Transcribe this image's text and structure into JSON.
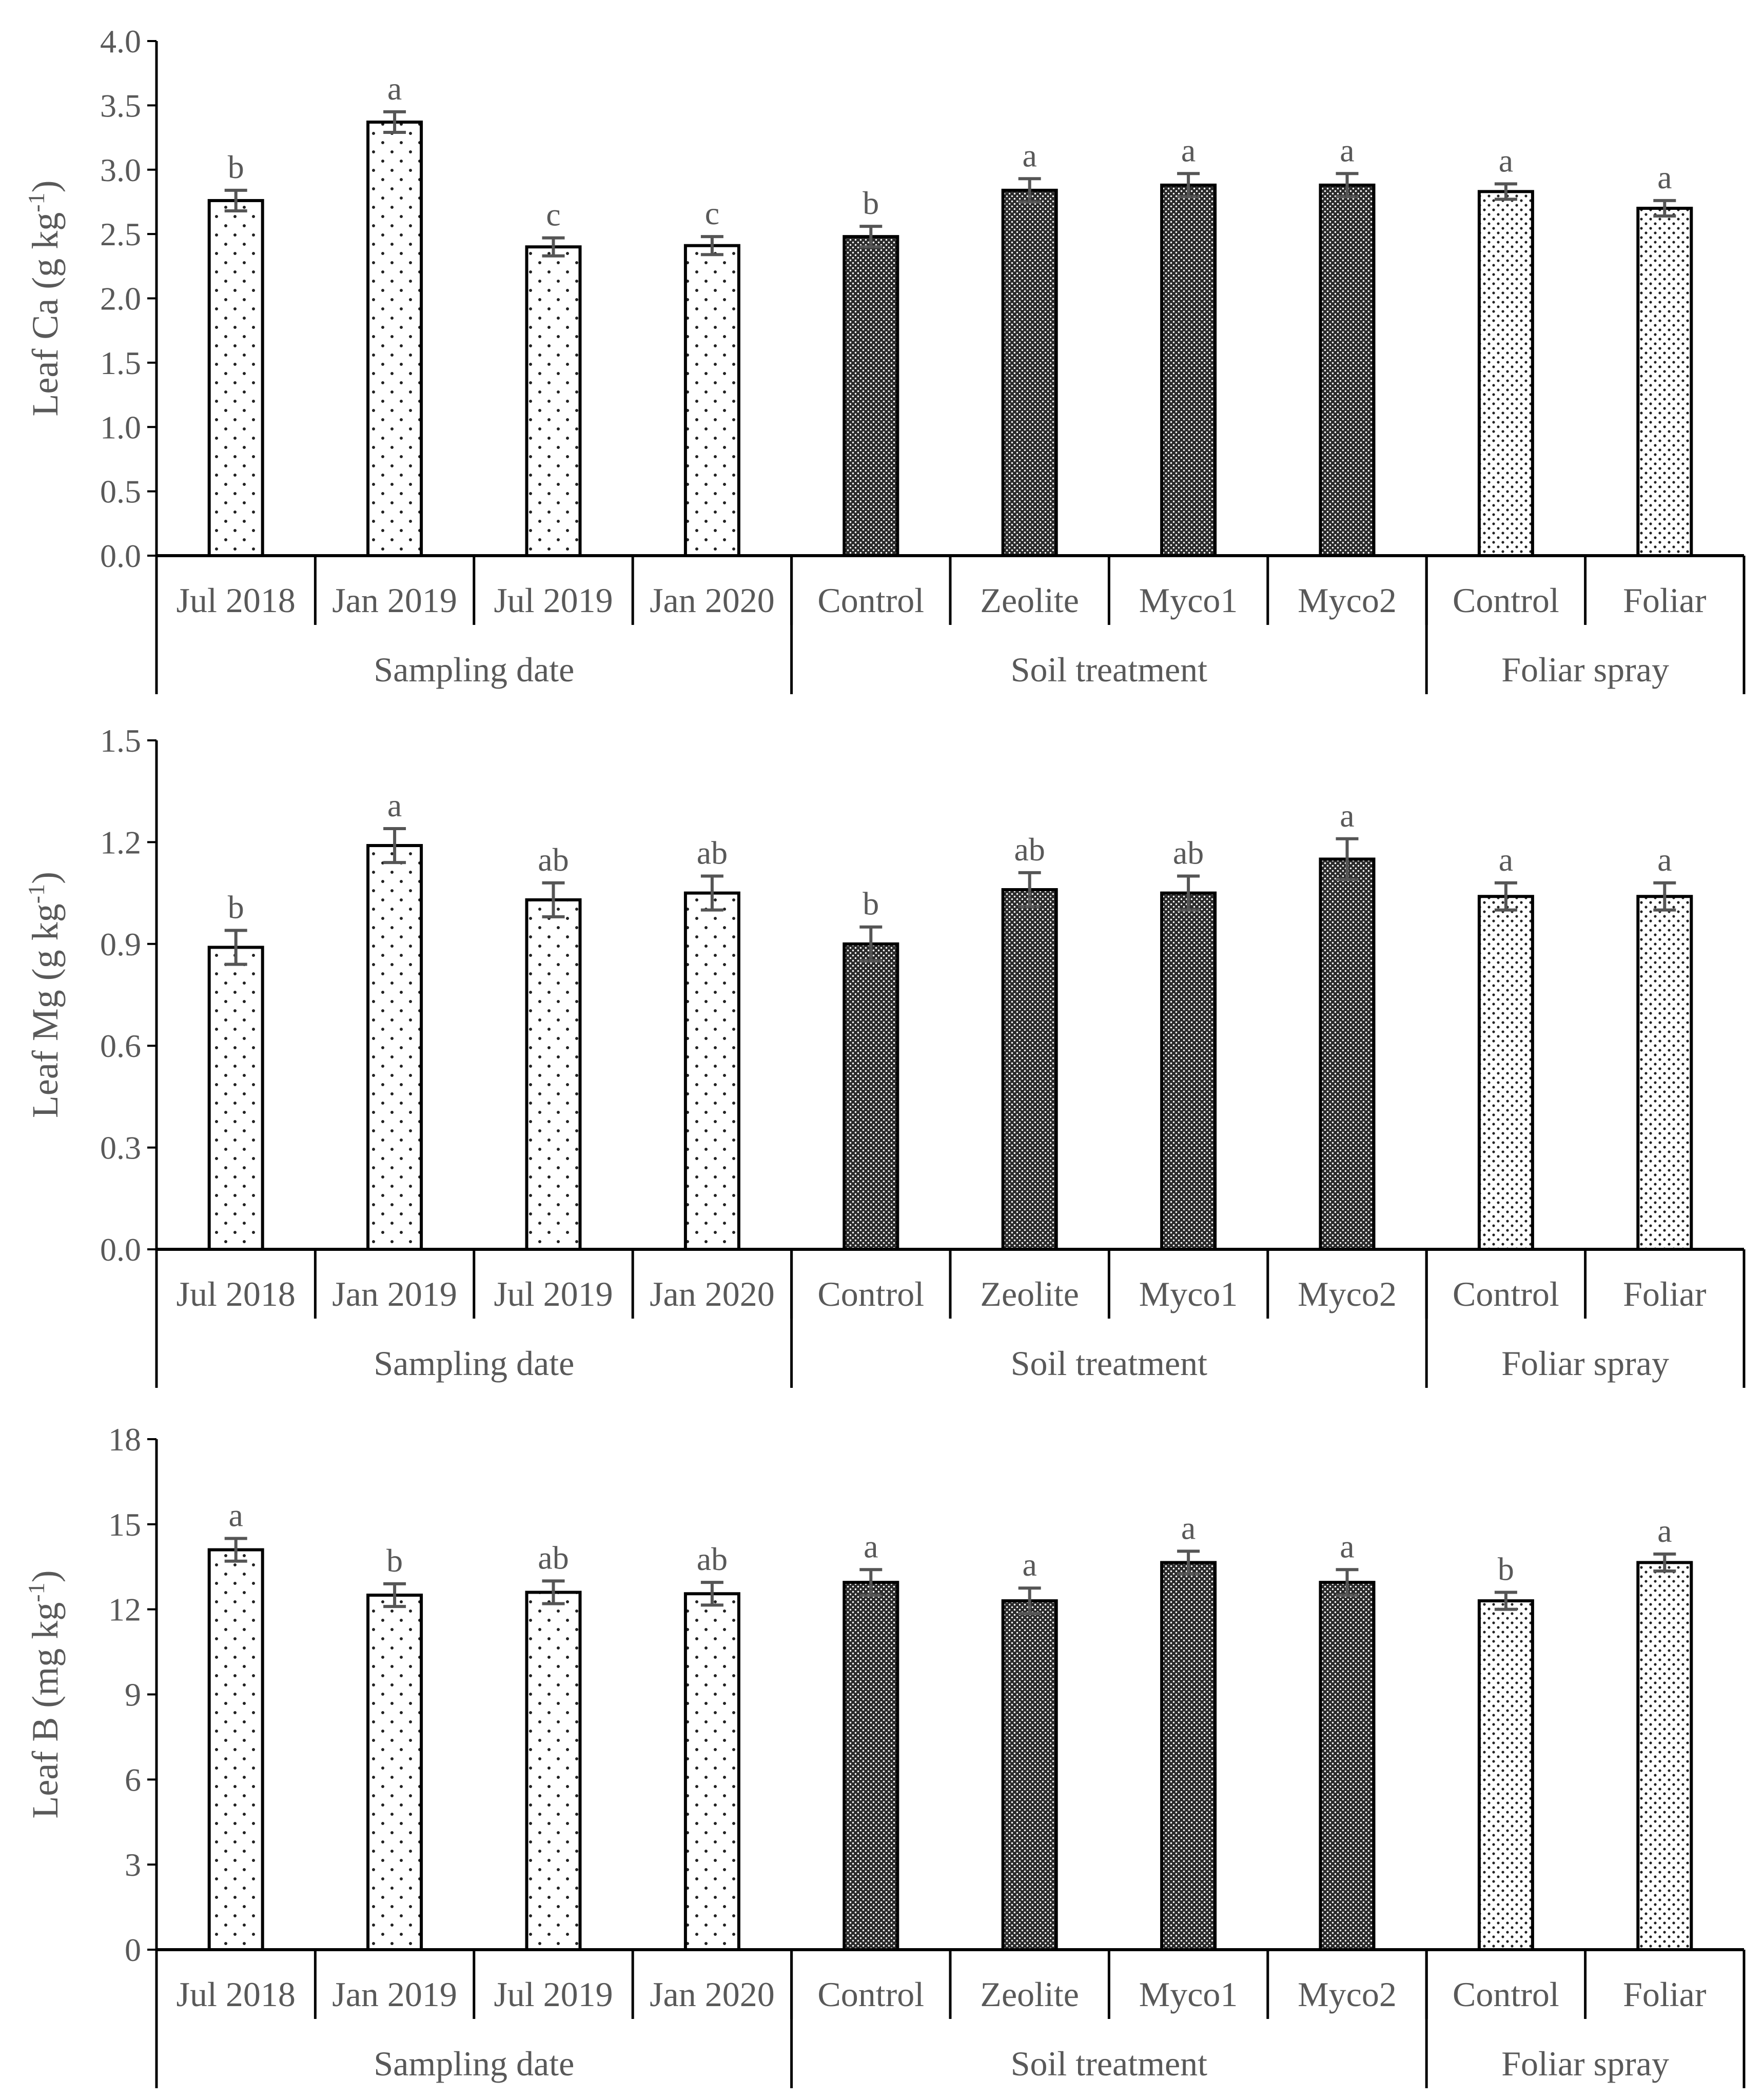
{
  "chart_data": [
    {
      "type": "bar",
      "panel": "top",
      "ylabel": "Leaf Ca (g kg-1)",
      "ylabel_main": "Leaf Ca (g kg",
      "ylabel_sup": "-1",
      "ylabel_end": ")",
      "ylim": [
        0,
        4
      ],
      "yticks": [
        "0.0",
        "0.5",
        "1.0",
        "1.5",
        "2.0",
        "2.5",
        "3.0",
        "3.5",
        "4.0"
      ],
      "ytick_values": [
        0,
        0.5,
        1.0,
        1.5,
        2.0,
        2.5,
        3.0,
        3.5,
        4.0
      ],
      "categories": [
        "Jul 2018",
        "Jan 2019",
        "Jul 2019",
        "Jan 2020",
        "Control",
        "Zeolite",
        "Myco1",
        "Myco2",
        "Control",
        "Foliar"
      ],
      "values": [
        2.76,
        3.37,
        2.4,
        2.41,
        2.48,
        2.84,
        2.88,
        2.88,
        2.83,
        2.7
      ],
      "errors": [
        0.08,
        0.08,
        0.07,
        0.07,
        0.08,
        0.09,
        0.09,
        0.09,
        0.06,
        0.06
      ],
      "letters": [
        "b",
        "a",
        "c",
        "c",
        "b",
        "a",
        "a",
        "a",
        "a",
        "a"
      ],
      "patterns": [
        "sparse",
        "sparse",
        "sparse",
        "sparse",
        "dense",
        "dense",
        "dense",
        "dense",
        "fine",
        "fine"
      ],
      "groups": [
        {
          "label": "Sampling date",
          "start": 0,
          "end": 3
        },
        {
          "label": "Soil treatment",
          "start": 4,
          "end": 7
        },
        {
          "label": "Foliar spray",
          "start": 8,
          "end": 9
        }
      ]
    },
    {
      "type": "bar",
      "panel": "middle",
      "ylabel": "Leaf Mg (g kg-1)",
      "ylabel_main": "Leaf Mg (g kg",
      "ylabel_sup": "-1",
      "ylabel_end": ")",
      "ylim": [
        0,
        1.5
      ],
      "yticks": [
        "0.0",
        "0.3",
        "0.6",
        "0.9",
        "1.2",
        "1.5"
      ],
      "ytick_values": [
        0,
        0.3,
        0.6,
        0.9,
        1.2,
        1.5
      ],
      "categories": [
        "Jul 2018",
        "Jan 2019",
        "Jul 2019",
        "Jan 2020",
        "Control",
        "Zeolite",
        "Myco1",
        "Myco2",
        "Control",
        "Foliar"
      ],
      "values": [
        0.89,
        1.19,
        1.03,
        1.05,
        0.9,
        1.06,
        1.05,
        1.15,
        1.04,
        1.04
      ],
      "errors": [
        0.05,
        0.05,
        0.05,
        0.05,
        0.05,
        0.05,
        0.05,
        0.06,
        0.04,
        0.04
      ],
      "letters": [
        "b",
        "a",
        "ab",
        "ab",
        "b",
        "ab",
        "ab",
        "a",
        "a",
        "a"
      ],
      "patterns": [
        "sparse",
        "sparse",
        "sparse",
        "sparse",
        "dense",
        "dense",
        "dense",
        "dense",
        "fine",
        "fine"
      ],
      "groups": [
        {
          "label": "Sampling date",
          "start": 0,
          "end": 3
        },
        {
          "label": "Soil treatment",
          "start": 4,
          "end": 7
        },
        {
          "label": "Foliar spray",
          "start": 8,
          "end": 9
        }
      ]
    },
    {
      "type": "bar",
      "panel": "bottom",
      "ylabel": "Leaf B (mg kg-1)",
      "ylabel_main": "Leaf B (mg kg",
      "ylabel_sup": "-1",
      "ylabel_end": ")",
      "ylim": [
        0,
        18
      ],
      "yticks": [
        "0",
        "3",
        "6",
        "9",
        "12",
        "15",
        "18"
      ],
      "ytick_values": [
        0,
        3,
        6,
        9,
        12,
        15,
        18
      ],
      "categories": [
        "Jul 2018",
        "Jan 2019",
        "Jul 2019",
        "Jan 2020",
        "Control",
        "Zeolite",
        "Myco1",
        "Myco2",
        "Control",
        "Foliar"
      ],
      "values": [
        14.1,
        12.5,
        12.6,
        12.55,
        12.95,
        12.3,
        13.65,
        12.95,
        12.3,
        13.65
      ],
      "errors": [
        0.4,
        0.4,
        0.4,
        0.4,
        0.45,
        0.45,
        0.4,
        0.45,
        0.3,
        0.3
      ],
      "letters": [
        "a",
        "b",
        "ab",
        "ab",
        "a",
        "a",
        "a",
        "a",
        "b",
        "a"
      ],
      "patterns": [
        "sparse",
        "sparse",
        "sparse",
        "sparse",
        "dense",
        "dense",
        "dense",
        "dense",
        "fine",
        "fine"
      ],
      "groups": [
        {
          "label": "Sampling date",
          "start": 0,
          "end": 3
        },
        {
          "label": "Soil treatment",
          "start": 4,
          "end": 7
        },
        {
          "label": "Foliar spray",
          "start": 8,
          "end": 9
        }
      ]
    }
  ]
}
